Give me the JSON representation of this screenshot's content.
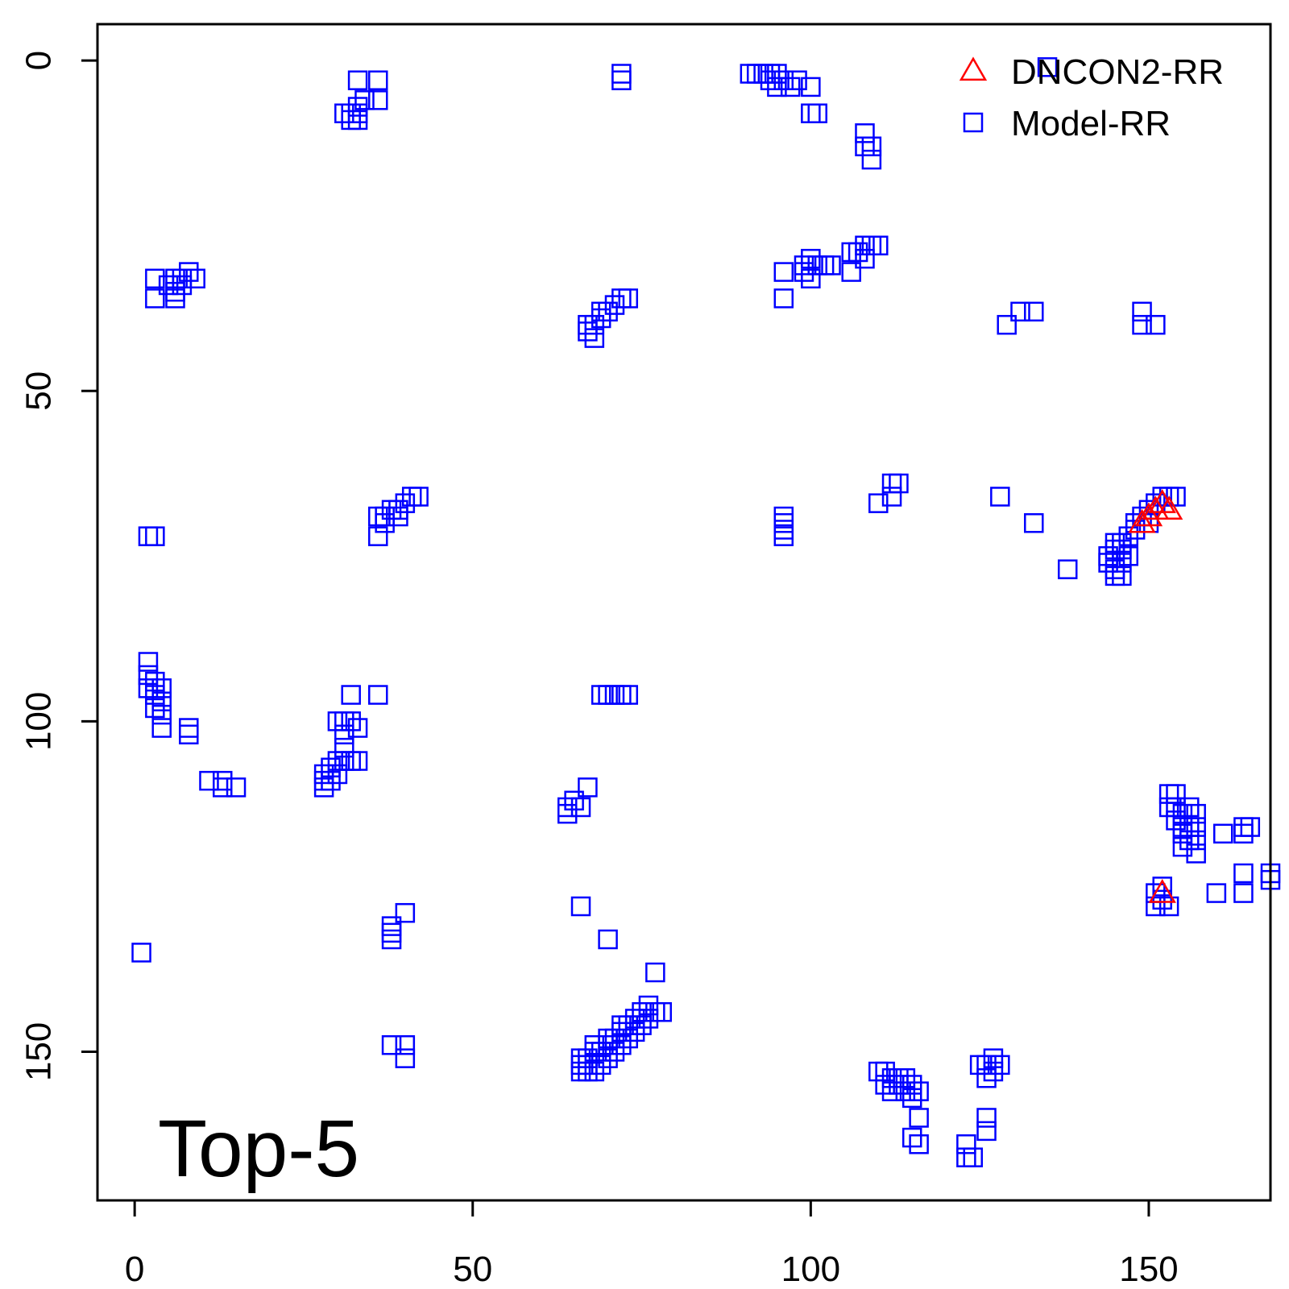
{
  "chart_data": {
    "type": "scatter",
    "title": "",
    "xlabel": "",
    "ylabel": "",
    "xlim": [
      -5.5,
      168
    ],
    "ylim": [
      172.5,
      -5.5
    ],
    "y_axis_inverted": true,
    "x_ticks": [
      0,
      50,
      100,
      150
    ],
    "x_tick_labels": [
      "0",
      "50",
      "100",
      "150"
    ],
    "y_ticks": [
      0,
      50,
      100,
      150
    ],
    "y_tick_labels": [
      "0",
      "50",
      "100",
      "150"
    ],
    "grid": false,
    "legend_position": "top-right",
    "annotation": "Top-5",
    "series": [
      {
        "name": "DNCON2-RR",
        "marker": "triangle",
        "color": "#ff0000",
        "points": [
          [
            149,
            70
          ],
          [
            150,
            69
          ],
          [
            151,
            68
          ],
          [
            152,
            67
          ],
          [
            153,
            68
          ],
          [
            152,
            126
          ]
        ]
      },
      {
        "name": "Model-RR",
        "marker": "square",
        "color": "#0000ff",
        "points": [
          [
            33,
            3
          ],
          [
            36,
            3
          ],
          [
            34,
            6
          ],
          [
            36,
            6
          ],
          [
            33,
            7
          ],
          [
            31,
            8
          ],
          [
            32,
            8
          ],
          [
            33,
            8
          ],
          [
            32,
            9
          ],
          [
            33,
            9
          ],
          [
            72,
            2
          ],
          [
            72,
            3
          ],
          [
            91,
            2
          ],
          [
            92,
            2
          ],
          [
            93,
            2
          ],
          [
            94,
            2
          ],
          [
            95,
            2
          ],
          [
            94,
            3
          ],
          [
            96,
            3
          ],
          [
            98,
            3
          ],
          [
            95,
            4
          ],
          [
            97,
            4
          ],
          [
            100,
            4
          ],
          [
            100,
            8
          ],
          [
            101,
            8
          ],
          [
            108,
            11
          ],
          [
            108,
            13
          ],
          [
            109,
            13
          ],
          [
            109,
            15
          ],
          [
            135,
            1
          ],
          [
            3,
            33
          ],
          [
            3,
            36
          ],
          [
            6,
            33
          ],
          [
            7,
            33
          ],
          [
            8,
            32
          ],
          [
            9,
            33
          ],
          [
            6,
            35
          ],
          [
            7,
            34
          ],
          [
            5,
            34
          ],
          [
            6,
            36
          ],
          [
            96,
            32
          ],
          [
            96,
            36
          ],
          [
            100,
            30
          ],
          [
            99,
            31
          ],
          [
            101,
            31
          ],
          [
            100,
            33
          ],
          [
            103,
            31
          ],
          [
            99,
            32
          ],
          [
            102,
            31
          ],
          [
            106,
            29
          ],
          [
            107,
            29
          ],
          [
            108,
            28
          ],
          [
            109,
            28
          ],
          [
            110,
            28
          ],
          [
            106,
            32
          ],
          [
            108,
            30
          ],
          [
            67,
            40
          ],
          [
            67,
            41
          ],
          [
            68,
            40
          ],
          [
            69,
            39
          ],
          [
            70,
            38
          ],
          [
            71,
            37
          ],
          [
            72,
            36
          ],
          [
            73,
            36
          ],
          [
            68,
            42
          ],
          [
            69,
            38
          ],
          [
            129,
            40
          ],
          [
            131,
            38
          ],
          [
            133,
            38
          ],
          [
            149,
            38
          ],
          [
            149,
            40
          ],
          [
            151,
            40
          ],
          [
            2,
            72
          ],
          [
            3,
            72
          ],
          [
            36,
            69
          ],
          [
            37,
            69
          ],
          [
            38,
            68
          ],
          [
            39,
            68
          ],
          [
            40,
            67
          ],
          [
            41,
            66
          ],
          [
            42,
            66
          ],
          [
            36,
            72
          ],
          [
            37,
            70
          ],
          [
            39,
            69
          ],
          [
            96,
            69
          ],
          [
            96,
            70
          ],
          [
            96,
            71
          ],
          [
            96,
            72
          ],
          [
            110,
            67
          ],
          [
            112,
            64
          ],
          [
            113,
            64
          ],
          [
            112,
            66
          ],
          [
            128,
            66
          ],
          [
            133,
            70
          ],
          [
            138,
            77
          ],
          [
            144,
            75
          ],
          [
            145,
            74
          ],
          [
            146,
            73
          ],
          [
            147,
            72
          ],
          [
            148,
            71
          ],
          [
            149,
            69
          ],
          [
            150,
            68
          ],
          [
            151,
            67
          ],
          [
            152,
            66
          ],
          [
            153,
            66
          ],
          [
            154,
            66
          ],
          [
            145,
            77
          ],
          [
            146,
            76
          ],
          [
            145,
            78
          ],
          [
            146,
            78
          ],
          [
            147,
            75
          ],
          [
            144,
            76
          ],
          [
            145,
            73
          ],
          [
            146,
            74
          ],
          [
            150,
            70
          ],
          [
            148,
            70
          ],
          [
            2,
            91
          ],
          [
            2,
            93
          ],
          [
            3,
            94
          ],
          [
            2,
            95
          ],
          [
            3,
            96
          ],
          [
            4,
            95
          ],
          [
            3,
            98
          ],
          [
            4,
            99
          ],
          [
            4,
            101
          ],
          [
            4,
            97
          ],
          [
            8,
            101
          ],
          [
            8,
            102
          ],
          [
            11,
            109
          ],
          [
            13,
            109
          ],
          [
            13,
            110
          ],
          [
            15,
            110
          ],
          [
            36,
            96
          ],
          [
            32,
            96
          ],
          [
            30,
            100
          ],
          [
            31,
            100
          ],
          [
            32,
            100
          ],
          [
            33,
            101
          ],
          [
            31,
            102
          ],
          [
            31,
            104
          ],
          [
            28,
            108
          ],
          [
            29,
            107
          ],
          [
            30,
            106
          ],
          [
            31,
            106
          ],
          [
            32,
            106
          ],
          [
            33,
            106
          ],
          [
            28,
            110
          ],
          [
            29,
            109
          ],
          [
            30,
            108
          ],
          [
            28,
            109
          ],
          [
            69,
            96
          ],
          [
            70,
            96
          ],
          [
            71,
            96
          ],
          [
            72,
            96
          ],
          [
            73,
            96
          ],
          [
            64,
            113
          ],
          [
            65,
            112
          ],
          [
            64,
            114
          ],
          [
            66,
            113
          ],
          [
            67,
            110
          ],
          [
            154,
            111
          ],
          [
            153,
            111
          ],
          [
            154,
            113
          ],
          [
            155,
            114
          ],
          [
            156,
            113
          ],
          [
            157,
            114
          ],
          [
            155,
            116
          ],
          [
            156,
            116
          ],
          [
            157,
            116
          ],
          [
            155,
            117
          ],
          [
            156,
            118
          ],
          [
            157,
            118
          ],
          [
            155,
            119
          ],
          [
            157,
            120
          ],
          [
            154,
            115
          ],
          [
            153,
            113
          ],
          [
            161,
            117
          ],
          [
            164,
            116
          ],
          [
            164,
            117
          ],
          [
            165,
            116
          ],
          [
            152,
            125
          ],
          [
            151,
            126
          ],
          [
            152,
            127
          ],
          [
            153,
            128
          ],
          [
            151,
            128
          ],
          [
            160,
            126
          ],
          [
            164,
            126
          ],
          [
            164,
            123
          ],
          [
            168,
            123
          ],
          [
            168,
            124
          ],
          [
            66,
            128
          ],
          [
            70,
            133
          ],
          [
            40,
            129
          ],
          [
            38,
            131
          ],
          [
            38,
            132
          ],
          [
            38,
            133
          ],
          [
            1,
            135
          ],
          [
            77,
            138
          ],
          [
            38,
            149
          ],
          [
            40,
            149
          ],
          [
            40,
            151
          ],
          [
            66,
            151
          ],
          [
            67,
            151
          ],
          [
            68,
            150
          ],
          [
            69,
            150
          ],
          [
            70,
            149
          ],
          [
            71,
            148
          ],
          [
            72,
            147
          ],
          [
            73,
            146
          ],
          [
            74,
            145
          ],
          [
            75,
            144
          ],
          [
            76,
            143
          ],
          [
            77,
            144
          ],
          [
            78,
            144
          ],
          [
            66,
            152
          ],
          [
            67,
            153
          ],
          [
            68,
            153
          ],
          [
            69,
            152
          ],
          [
            70,
            151
          ],
          [
            71,
            150
          ],
          [
            72,
            149
          ],
          [
            73,
            148
          ],
          [
            74,
            147
          ],
          [
            75,
            146
          ],
          [
            76,
            145
          ],
          [
            68,
            149
          ],
          [
            70,
            148
          ],
          [
            72,
            146
          ],
          [
            74,
            146
          ],
          [
            66,
            153
          ],
          [
            67,
            152
          ],
          [
            110,
            153
          ],
          [
            111,
            155
          ],
          [
            112,
            154
          ],
          [
            113,
            155
          ],
          [
            114,
            156
          ],
          [
            115,
            155
          ],
          [
            116,
            156
          ],
          [
            111,
            153
          ],
          [
            112,
            156
          ],
          [
            113,
            154
          ],
          [
            114,
            154
          ],
          [
            115,
            157
          ],
          [
            116,
            160
          ],
          [
            115,
            163
          ],
          [
            116,
            164
          ],
          [
            123,
            164
          ],
          [
            124,
            166
          ],
          [
            123,
            166
          ],
          [
            126,
            160
          ],
          [
            126,
            162
          ],
          [
            125,
            152
          ],
          [
            126,
            152
          ],
          [
            127,
            153
          ],
          [
            128,
            152
          ],
          [
            126,
            154
          ],
          [
            127,
            151
          ]
        ]
      }
    ]
  }
}
